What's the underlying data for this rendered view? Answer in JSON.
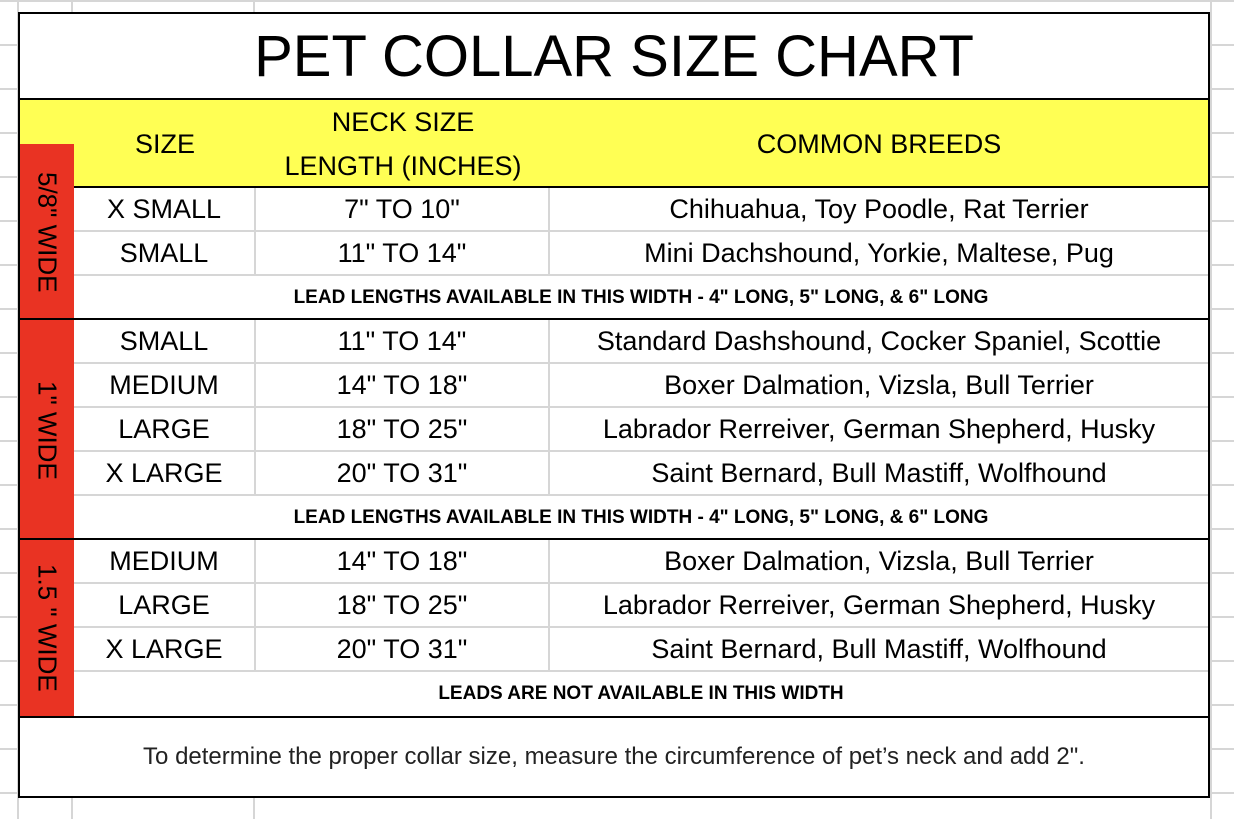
{
  "title": "PET COLLAR SIZE CHART",
  "header": {
    "size": "SIZE",
    "neck_line1": "NECK SIZE",
    "neck_line2": "LENGTH (INCHES)",
    "breeds": "COMMON BREEDS"
  },
  "colors": {
    "header_bg": "#ffff54",
    "width_label_bg": "#e93323"
  },
  "groups": [
    {
      "width": "5/8\" WIDE",
      "rows": [
        {
          "size": "X SMALL",
          "neck": "7\" TO 10\"",
          "breeds": "Chihuahua, Toy Poodle, Rat Terrier"
        },
        {
          "size": "SMALL",
          "neck": "11\" TO 14\"",
          "breeds": "Mini Dachshound, Yorkie, Maltese, Pug"
        }
      ],
      "note": "LEAD LENGTHS AVAILABLE IN THIS WIDTH - 4\" LONG, 5\" LONG, & 6\" LONG"
    },
    {
      "width": "1\" WIDE",
      "rows": [
        {
          "size": "SMALL",
          "neck": "11\" TO 14\"",
          "breeds": "Standard Dashshound, Cocker Spaniel, Scottie"
        },
        {
          "size": "MEDIUM",
          "neck": "14\" TO 18\"",
          "breeds": "Boxer Dalmation, Vizsla, Bull Terrier"
        },
        {
          "size": "LARGE",
          "neck": "18\" TO 25\"",
          "breeds": "Labrador Rerreiver, German Shepherd, Husky"
        },
        {
          "size": "X LARGE",
          "neck": "20\" TO 31\"",
          "breeds": "Saint Bernard, Bull Mastiff, Wolfhound"
        }
      ],
      "note": "LEAD LENGTHS AVAILABLE IN THIS WIDTH  - 4\" LONG, 5\" LONG, & 6\" LONG"
    },
    {
      "width": "1.5 \" WIDE",
      "rows": [
        {
          "size": "MEDIUM",
          "neck": "14\" TO 18\"",
          "breeds": "Boxer Dalmation, Vizsla, Bull Terrier"
        },
        {
          "size": "LARGE",
          "neck": "18\" TO 25\"",
          "breeds": "Labrador Rerreiver, German Shepherd, Husky"
        },
        {
          "size": "X LARGE",
          "neck": "20\" TO 31\"",
          "breeds": "Saint Bernard, Bull Mastiff, Wolfhound"
        }
      ],
      "note": "LEADS ARE NOT AVAILABLE IN THIS WIDTH"
    }
  ],
  "footer": "To determine the proper collar size, measure the circumference of pet’s neck and add 2\"."
}
